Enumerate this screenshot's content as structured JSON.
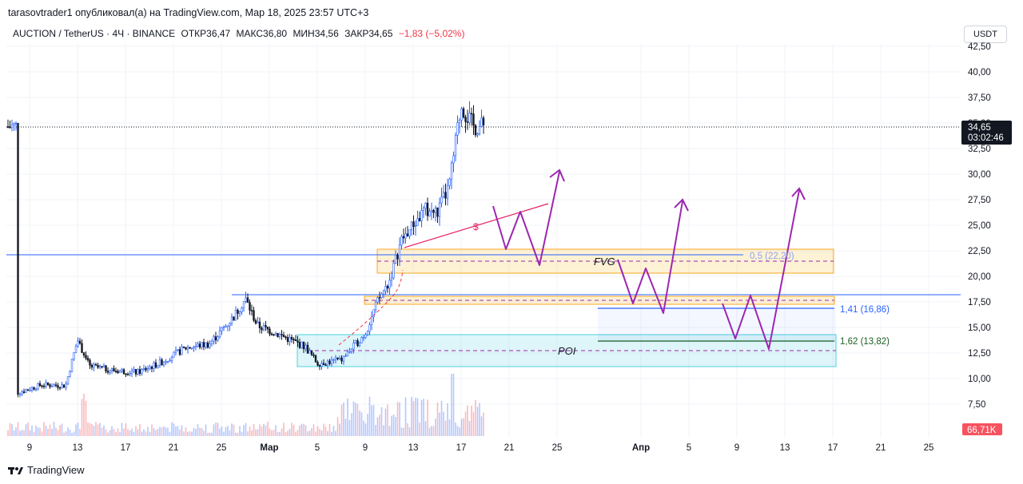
{
  "header": {
    "published": "tarasovtrader1 опубликовал(а) на TradingView.com, Мар 18, 2025 23:57 UTC+3"
  },
  "symbol_bar": {
    "pair": "AUCTION / TetherUS · 4Ч · BINANCE",
    "open": "ОТКР36,47",
    "high": "МАКС36,80",
    "low": "МИН34,56",
    "close": "ЗАКР34,65",
    "change": "−1,83 (−5,02%)"
  },
  "currency_button": "USDT",
  "footer": {
    "brand": "TradingView",
    "logo_icon": "tradingview-logo-icon"
  },
  "colors": {
    "up": "#2962ff",
    "down": "#131722",
    "accent": "#9c27b0",
    "fvg": "#fbc02d",
    "poi": "#00bcd4"
  },
  "chart_data": {
    "type": "candlestick",
    "symbol": "AUCTION / TetherUS",
    "timeframe": "4Ч",
    "exchange": "BINANCE",
    "ylim": [
      6.0,
      43.0
    ],
    "y_ticks": [
      "42,50",
      "40,00",
      "37,50",
      "35,00",
      "32,50",
      "30,00",
      "27,50",
      "25,00",
      "22,50",
      "20,00",
      "17,50",
      "15,00",
      "12,50",
      "10,00",
      "7,50"
    ],
    "x_ticks": [
      "9",
      "13",
      "17",
      "21",
      "25",
      "Мар",
      "5",
      "9",
      "13",
      "17",
      "21",
      "25",
      "Апр",
      "5",
      "9",
      "13",
      "17",
      "21",
      "25"
    ],
    "last_price": {
      "value": "34,65",
      "countdown": "03:02:46"
    },
    "volume_label": "66,71K",
    "price_path": [
      [
        "Feb 8",
        8.6
      ],
      [
        "Feb 10",
        9.4
      ],
      [
        "Feb 12",
        9.3
      ],
      [
        "Feb 13",
        13.8
      ],
      [
        "Feb 14",
        11.2
      ],
      [
        "Feb 16",
        10.8
      ],
      [
        "Feb 18",
        10.6
      ],
      [
        "Feb 20",
        11.6
      ],
      [
        "Feb 22",
        13.0
      ],
      [
        "Feb 24",
        13.4
      ],
      [
        "Feb 26",
        16.0
      ],
      [
        "Feb 27",
        17.8
      ],
      [
        "Feb 28",
        15.2
      ],
      [
        "Mar 2",
        14.2
      ],
      [
        "Mar 4",
        13.1
      ],
      [
        "Mar 5",
        11.5
      ],
      [
        "Mar 7",
        11.8
      ],
      [
        "Mar 9",
        14.4
      ],
      [
        "Mar 10",
        17.5
      ],
      [
        "Mar 11",
        19.5
      ],
      [
        "Mar 12",
        23.5
      ],
      [
        "Mar 13",
        25.0
      ],
      [
        "Mar 14",
        26.5
      ],
      [
        "Mar 15",
        26.2
      ],
      [
        "Mar 16",
        28.8
      ],
      [
        "Mar 17",
        36.8
      ],
      [
        "Mar 18",
        34.65
      ]
    ],
    "annotations": {
      "fvg_zone": {
        "label": "FVG",
        "top": 22.9,
        "bottom": 20.6,
        "mid": 21.6
      },
      "upper_gap_zone": {
        "top": 17.9,
        "bottom": 17.3
      },
      "poi_zone": {
        "label": "POI",
        "top": 14.3,
        "bottom": 11.1,
        "mid": 12.8
      },
      "fib_levels": [
        {
          "label": "0,5 (22,20)",
          "value": 22.2
        },
        {
          "label": "1,41 (16,86)",
          "value": 16.86
        },
        {
          "label": "1,62 (13,82)",
          "value": 13.82
        }
      ],
      "horizontal_lines": [
        22.2,
        18.2
      ],
      "liquidity_marker": "$"
    }
  }
}
